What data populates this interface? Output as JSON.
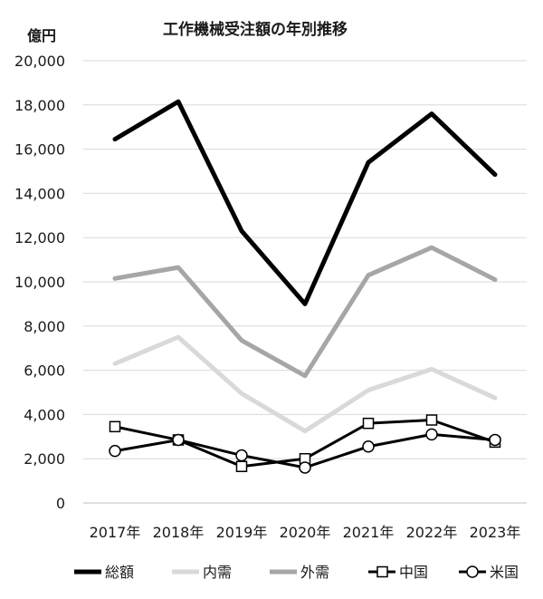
{
  "chart_data": {
    "type": "line",
    "title": "工作機械受注額の年別推移",
    "ylabel": "億円",
    "xlabel": "",
    "categories": [
      "2017年",
      "2018年",
      "2019年",
      "2020年",
      "2021年",
      "2022年",
      "2023年"
    ],
    "ylim": [
      0,
      20000
    ],
    "yticks": [
      0,
      2000,
      4000,
      6000,
      8000,
      10000,
      12000,
      14000,
      16000,
      18000,
      20000
    ],
    "ytick_labels": [
      "0",
      "2,000",
      "4,000",
      "6,000",
      "8,000",
      "10,000",
      "12,000",
      "14,000",
      "16,000",
      "18,000",
      "20,000"
    ],
    "grid": true,
    "legend_position": "bottom",
    "series": [
      {
        "name": "総額",
        "color": "#000000",
        "marker": "none",
        "values": [
          16450,
          18150,
          12300,
          9000,
          15400,
          17600,
          14850
        ]
      },
      {
        "name": "内需",
        "color": "#d9d9d9",
        "marker": "none",
        "values": [
          6300,
          7500,
          4950,
          3250,
          5100,
          6050,
          4750
        ]
      },
      {
        "name": "外需",
        "color": "#a6a6a6",
        "marker": "none",
        "values": [
          10150,
          10650,
          7350,
          5750,
          10300,
          11550,
          10100
        ]
      },
      {
        "name": "中国",
        "color": "#000000",
        "marker": "square",
        "values": [
          3450,
          2850,
          1650,
          2000,
          3600,
          3750,
          2750
        ]
      },
      {
        "name": "米国",
        "color": "#000000",
        "marker": "circle",
        "values": [
          2350,
          2850,
          2150,
          1600,
          2550,
          3100,
          2850
        ]
      }
    ]
  }
}
